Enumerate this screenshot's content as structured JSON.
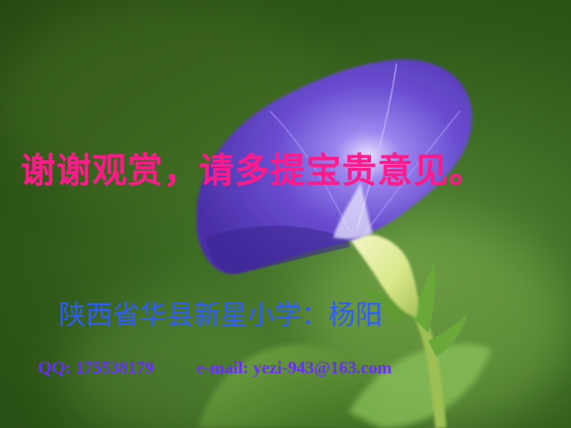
{
  "slide": {
    "title": "谢谢观赏，请多提宝贵意见。",
    "author_line": "陕西省华县新星小学：杨阳",
    "qq": "QQ: 175538179",
    "email": "e-mail: yezi-943@163.com"
  },
  "colors": {
    "title": "#ff1a8c",
    "author": "#2f5cff",
    "contact": "#6a2cff",
    "background": "#3f6e25",
    "petal": "#6b4fd1"
  },
  "illustration": "morning-glory-flower"
}
